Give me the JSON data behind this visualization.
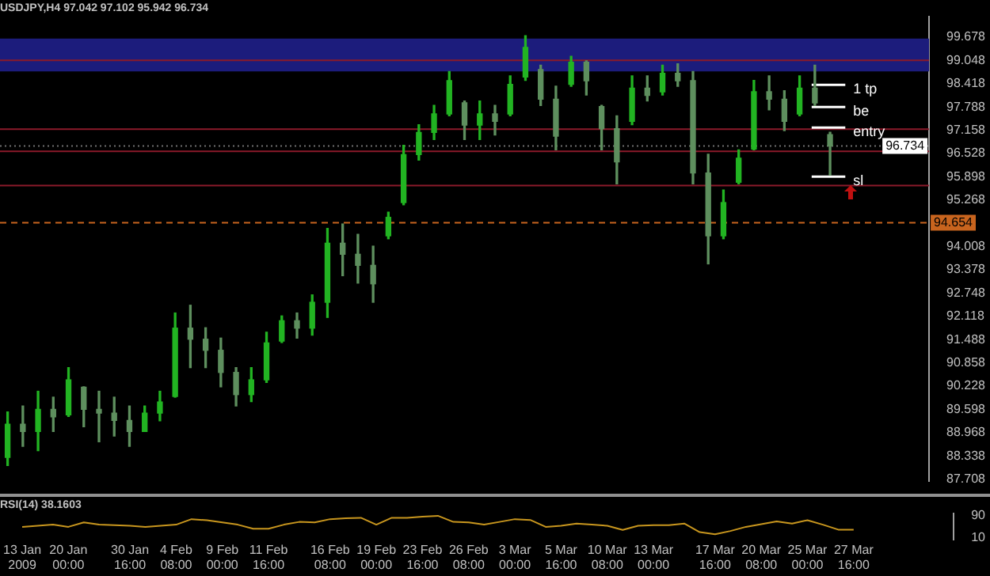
{
  "chart_data": [
    {
      "type": "candlestick",
      "title": "USDJPY,H4 97.042 97.102 95.942 96.734",
      "colors": [
        "#22b422",
        "#5e8f5e",
        "#22b422",
        "#5e8f5e",
        "#22b422",
        "#5e8f5e",
        "#5e8f5e",
        "#5e8f5e",
        "#5e8f5e",
        "#22b422",
        "#22b422",
        "#22b422",
        "#5e8f5e",
        "#5e8f5e",
        "#5e8f5e",
        "#5e8f5e",
        "#22b422",
        "#22b422",
        "#22b422",
        "#5e8f5e",
        "#22b422",
        "#22b422",
        "#5e8f5e",
        "#5e8f5e",
        "#5e8f5e",
        "#22b422",
        "#22b422",
        "#22b422",
        "#22b422",
        "#22b422",
        "#5e8f5e",
        "#22b422",
        "#5e8f5e",
        "#22b422",
        "#22b422",
        "#5e8f5e",
        "#5e8f5e",
        "#22b422",
        "#5e8f5e",
        "#5e8f5e",
        "#5e8f5e",
        "#22b422",
        "#5e8f5e",
        "#22b422",
        "#5e8f5e",
        "#5e8f5e",
        "#5e8f5e",
        "#22b422",
        "#22b422",
        "#22b422",
        "#5e8f5e",
        "#5e8f5e",
        "#22b422",
        "#5e8f5e",
        "#5e8f5e",
        null,
        null,
        null,
        null,
        null,
        null
      ],
      "categories": [
        null,
        null,
        null,
        null,
        null,
        null,
        null,
        null,
        null,
        null,
        null,
        null,
        null,
        null,
        null,
        null,
        null,
        null,
        null,
        null,
        null,
        null,
        null,
        null,
        null,
        null,
        null,
        null,
        null,
        null,
        null,
        null,
        null,
        null,
        null,
        null,
        null,
        null,
        null,
        null,
        null,
        null,
        null,
        null,
        null,
        null,
        null,
        null,
        null,
        null,
        null,
        null,
        null,
        null,
        null,
        null,
        null,
        null,
        null,
        null,
        null
      ],
      "ohlc": [
        [
          88.3,
          89.53,
          88.08,
          89.2
        ],
        [
          89.2,
          89.69,
          88.6,
          89.0
        ],
        [
          89.0,
          90.09,
          88.48,
          89.6
        ],
        [
          89.6,
          89.93,
          89.0,
          89.4
        ],
        [
          89.45,
          90.73,
          89.41,
          90.4
        ],
        [
          90.2,
          90.21,
          89.13,
          89.6
        ],
        [
          89.6,
          90.09,
          88.72,
          89.5
        ],
        [
          89.5,
          89.93,
          88.88,
          89.3
        ],
        [
          89.3,
          89.69,
          88.6,
          89.0
        ],
        [
          89.0,
          89.69,
          89.0,
          89.5
        ],
        [
          89.5,
          90.09,
          89.29,
          89.8
        ],
        [
          89.95,
          92.21,
          89.93,
          91.8
        ],
        [
          91.8,
          92.42,
          90.73,
          91.5
        ],
        [
          91.5,
          91.81,
          90.73,
          91.2
        ],
        [
          91.2,
          91.53,
          90.21,
          90.6
        ],
        [
          90.6,
          90.73,
          89.69,
          90.0
        ],
        [
          90.0,
          90.73,
          89.81,
          90.4
        ],
        [
          90.4,
          91.69,
          90.33,
          91.4
        ],
        [
          91.45,
          92.13,
          91.41,
          92.0
        ],
        [
          92.0,
          92.21,
          91.53,
          91.8
        ],
        [
          91.8,
          92.7,
          91.61,
          92.5
        ],
        [
          92.5,
          94.5,
          92.09,
          94.1
        ],
        [
          94.1,
          94.62,
          93.22,
          93.8
        ],
        [
          93.8,
          94.34,
          93.02,
          93.5
        ],
        [
          93.5,
          94.02,
          92.5,
          93.0
        ],
        [
          94.3,
          94.94,
          94.22,
          94.8
        ],
        [
          95.2,
          96.75,
          95.14,
          96.5
        ],
        [
          96.5,
          97.31,
          96.35,
          97.1
        ],
        [
          97.1,
          97.83,
          96.91,
          97.6
        ],
        [
          97.6,
          98.75,
          97.55,
          98.5
        ],
        [
          97.9,
          97.95,
          96.91,
          97.3
        ],
        [
          97.3,
          97.95,
          96.91,
          97.6
        ],
        [
          97.6,
          97.83,
          97.03,
          97.4
        ],
        [
          97.6,
          98.63,
          97.55,
          98.4
        ],
        [
          98.6,
          99.72,
          98.51,
          99.4
        ],
        [
          98.8,
          98.92,
          97.83,
          98.0
        ],
        [
          98.0,
          98.35,
          96.63,
          97.0
        ],
        [
          98.4,
          99.16,
          98.35,
          99.0
        ],
        [
          99.0,
          99.04,
          98.11,
          98.5
        ],
        [
          97.8,
          97.83,
          96.63,
          97.2
        ],
        [
          97.2,
          97.55,
          95.71,
          96.3
        ],
        [
          97.4,
          98.63,
          97.31,
          98.3
        ],
        [
          98.3,
          98.63,
          97.95,
          98.1
        ],
        [
          98.2,
          98.92,
          98.11,
          98.7
        ],
        [
          98.7,
          98.96,
          98.35,
          98.5
        ],
        [
          98.5,
          98.75,
          95.71,
          96.0
        ],
        [
          96.0,
          96.51,
          93.54,
          94.3
        ],
        [
          94.3,
          95.54,
          94.22,
          95.2
        ],
        [
          95.75,
          96.63,
          95.71,
          96.4
        ],
        [
          96.65,
          98.51,
          96.63,
          98.2
        ],
        [
          98.2,
          98.63,
          97.71,
          98.0
        ],
        [
          98.0,
          98.23,
          97.15,
          97.4
        ],
        [
          97.6,
          98.63,
          97.55,
          98.3
        ],
        [
          98.3,
          98.92,
          97.83,
          97.9
        ],
        [
          97.042,
          97.102,
          95.942,
          96.734
        ],
        null,
        null,
        null,
        null,
        null,
        null
      ],
      "ylim": [
        87.65,
        100.24
      ],
      "yticks": [
        99.678,
        99.048,
        98.418,
        97.788,
        97.158,
        96.528,
        95.898,
        95.268,
        94.008,
        93.378,
        92.748,
        92.118,
        91.488,
        90.858,
        90.228,
        89.598,
        88.968,
        88.338,
        87.708
      ],
      "tick_labels": "y",
      "bands": [
        {
          "axis": "y",
          "from": 98.75,
          "to": 99.64,
          "color": "#1c1c7c"
        }
      ],
      "ref_lines": [
        {
          "axis": "y",
          "value": 99.05,
          "color": "#8b1a2a",
          "line_style": "solid"
        },
        {
          "axis": "y",
          "value": 97.19,
          "color": "#8b1a2a",
          "line_style": "solid"
        },
        {
          "axis": "y",
          "value": 96.59,
          "color": "#8b1a2a",
          "line_style": "solid"
        },
        {
          "axis": "y",
          "value": 95.66,
          "color": "#8b1a2a",
          "line_style": "solid"
        },
        {
          "axis": "y",
          "value": 96.734,
          "label": "96.734",
          "color": "#707070",
          "line_style": "dotted"
        },
        {
          "axis": "y",
          "value": 94.654,
          "label": "94.654",
          "color": "#c8641e",
          "line_style": "dashed"
        },
        {
          "axis": "y",
          "value": 98.39,
          "label": "1 tp",
          "color": "#ffffff",
          "line_style": "solid"
        },
        {
          "axis": "y",
          "value": 97.79,
          "label": "be",
          "color": "#ffffff",
          "line_style": "solid"
        },
        {
          "axis": "y",
          "value": 97.23,
          "label": "entry",
          "color": "#ffffff",
          "line_style": "solid"
        },
        {
          "axis": "y",
          "value": 95.9,
          "label": "sl",
          "color": "#ffffff",
          "line_style": "solid"
        }
      ]
    },
    {
      "type": "line",
      "title": "RSI(14) 38.1603",
      "categories": [
        "13 Jan 2009",
        null,
        null,
        "20 Jan 00:00",
        null,
        null,
        null,
        "30 Jan 16:00",
        null,
        null,
        "4 Feb 08:00",
        null,
        null,
        "9 Feb 00:00",
        null,
        null,
        "11 Feb 16:00",
        null,
        null,
        null,
        "16 Feb 08:00",
        null,
        null,
        "19 Feb 00:00",
        null,
        null,
        "23 Feb 16:00",
        null,
        null,
        "26 Feb 08:00",
        null,
        null,
        "3 Mar 00:00",
        null,
        null,
        "5 Mar 16:00",
        null,
        null,
        "10 Mar 08:00",
        null,
        null,
        "13 Mar 00:00",
        null,
        null,
        null,
        "17 Mar 16:00",
        null,
        null,
        "20 Mar 08:00",
        null,
        null,
        "25 Mar 00:00",
        null,
        null,
        "27 Mar 16:00",
        null,
        null,
        null,
        null,
        null,
        null
      ],
      "series": [
        {
          "color": "#c8961e",
          "values": [
            48,
            52,
            56,
            48,
            64,
            56,
            54,
            52,
            48,
            52,
            56,
            76,
            72,
            64,
            56,
            41,
            41,
            56,
            66,
            64,
            76,
            79,
            81,
            56,
            81,
            81,
            85,
            88,
            66,
            64,
            56,
            66,
            76,
            73,
            48,
            52,
            60,
            56,
            52,
            37,
            52,
            54,
            54,
            60,
            29,
            21,
            33,
            48,
            58,
            68,
            60,
            72,
            56,
            38,
            38,
            null,
            null,
            null,
            null,
            null,
            null
          ]
        }
      ],
      "ylim": [
        3,
        97
      ],
      "yticks": [
        90,
        10
      ]
    }
  ]
}
